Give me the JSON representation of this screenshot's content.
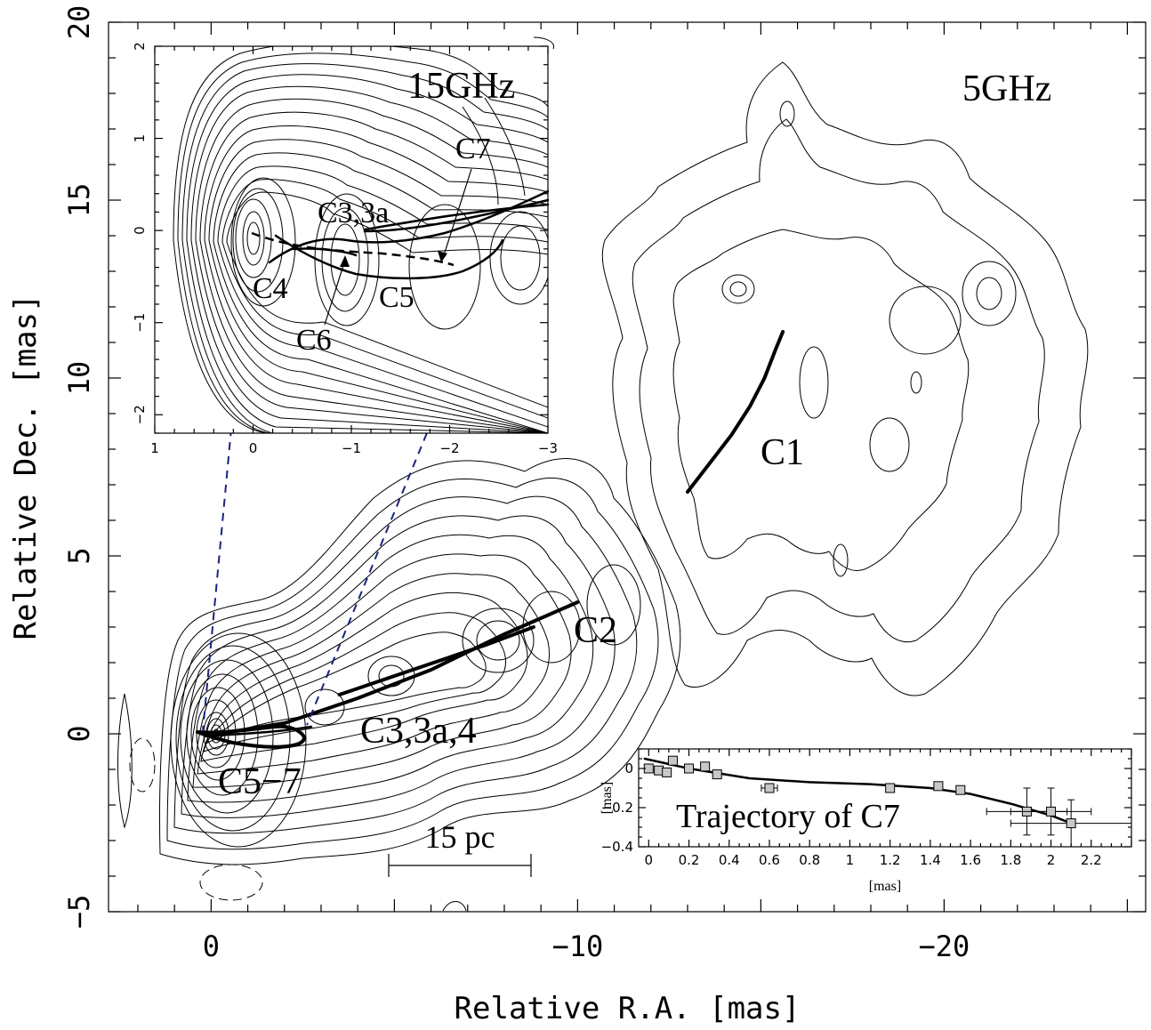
{
  "chart_data": [
    {
      "type": "contour",
      "name_on_chart": "5GHz",
      "xlabel": "Relative R.A. [mas]",
      "ylabel": "Relative Dec. [mas]",
      "xlim": [
        2.8,
        -25.5
      ],
      "ylim": [
        -5,
        20
      ],
      "xticks": [
        0,
        -10,
        -20
      ],
      "xtick_labels": [
        "0",
        "−10",
        "−20"
      ],
      "yticks": [
        -5,
        0,
        5,
        10,
        15,
        20
      ],
      "ytick_labels": [
        "−5",
        "0",
        "5",
        "10",
        "15",
        "20"
      ],
      "component_labels": [
        "C1",
        "C2",
        "C3,3a,4",
        "C5−7"
      ],
      "scale_bar_label": "15 pc",
      "tracks": [
        {
          "label": "C1",
          "x": [
            -13.0,
            -13.6,
            -14.2,
            -14.7,
            -15.1,
            -15.4,
            -15.6
          ],
          "y": [
            6.8,
            7.6,
            8.4,
            9.2,
            10.0,
            10.8,
            11.3
          ]
        },
        {
          "label": "C2",
          "x": [
            0.1,
            -2.0,
            -4.0,
            -6.0,
            -8.0,
            -10.0
          ],
          "y": [
            -0.05,
            0.3,
            1.0,
            1.8,
            2.8,
            3.7
          ]
        },
        {
          "label": "C3,3a,4",
          "x": [
            -3.5,
            -5.5,
            -7.5,
            -8.8
          ],
          "y": [
            1.1,
            1.8,
            2.5,
            3.0
          ]
        }
      ]
    },
    {
      "type": "contour",
      "name_on_chart": "15GHz",
      "xlim": [
        1,
        -3
      ],
      "ylim": [
        -2.2,
        2
      ],
      "xticks": [
        1,
        0,
        -1,
        -2,
        -3
      ],
      "xtick_labels": [
        "1",
        "0",
        "−1",
        "−2",
        "−3"
      ],
      "yticks": [
        -2,
        -1,
        0,
        1,
        2
      ],
      "ytick_labels": [
        "−2",
        "−1",
        "0",
        "1",
        "2"
      ],
      "component_labels": [
        "C3,3a",
        "C4",
        "C5",
        "C6",
        "C7"
      ]
    },
    {
      "type": "scatter",
      "title": "Trajectory of C7",
      "xlabel": "[mas]",
      "ylabel": "[mas]",
      "xlim": [
        -0.05,
        2.4
      ],
      "ylim": [
        -0.4,
        0.1
      ],
      "xticks": [
        0,
        0.2,
        0.4,
        0.6,
        0.8,
        1,
        1.2,
        1.4,
        1.6,
        1.8,
        2,
        2.2
      ],
      "xtick_labels": [
        "0",
        "0.2",
        "0.4",
        "0.6",
        "0.8",
        "1",
        "1.2",
        "1.4",
        "1.6",
        "1.8",
        "2",
        "2.2"
      ],
      "yticks": [
        0,
        -0.2,
        -0.4
      ],
      "ytick_labels": [
        "0",
        "−0.2",
        "−0.4"
      ],
      "points": {
        "x": [
          0.0,
          0.05,
          0.09,
          0.12,
          0.2,
          0.28,
          0.34,
          0.6,
          1.2,
          1.44,
          1.55,
          1.88,
          2.0,
          2.1
        ],
        "y": [
          0.0,
          -0.01,
          -0.02,
          0.04,
          0.0,
          0.01,
          -0.03,
          -0.1,
          -0.1,
          -0.09,
          -0.11,
          -0.22,
          -0.22,
          -0.28
        ],
        "xerr": [
          0.01,
          0.01,
          0.01,
          0.01,
          0.01,
          0.01,
          0.01,
          0.04,
          0.01,
          0.01,
          0.01,
          0.2,
          0.2,
          0.3
        ],
        "yerr": [
          0.01,
          0.01,
          0.01,
          0.01,
          0.01,
          0.01,
          0.01,
          0.02,
          0.01,
          0.01,
          0.01,
          0.12,
          0.12,
          0.12
        ]
      },
      "fit": {
        "x": [
          -0.02,
          0.2,
          0.5,
          0.8,
          1.1,
          1.4,
          1.6,
          1.8,
          2.0,
          2.1
        ],
        "y": [
          0.05,
          0.0,
          -0.05,
          -0.07,
          -0.08,
          -0.1,
          -0.13,
          -0.18,
          -0.24,
          -0.28
        ]
      }
    }
  ]
}
